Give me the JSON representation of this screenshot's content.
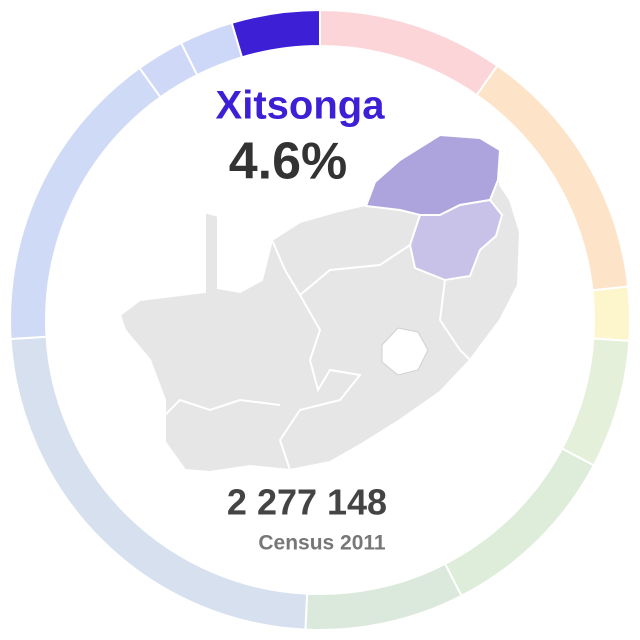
{
  "chart_data": {
    "type": "donut",
    "categories": [
      null,
      null,
      null,
      null,
      null,
      null,
      null,
      null,
      null,
      null,
      "Xitsonga"
    ],
    "values": [
      9.7,
      13.6,
      2.8,
      6.7,
      9.7,
      8.3,
      23.3,
      16.1,
      2.5,
      2.8,
      4.6
    ],
    "value_labels": [
      null,
      null,
      null,
      null,
      null,
      null,
      null,
      null,
      null,
      null,
      "4.6%"
    ],
    "colors": [
      "#fcd5d9",
      "#fde3c8",
      "#fdf5cc",
      "#e4f0d9",
      "#deedda",
      "#dbe9dc",
      "#d6e0ef",
      "#cfdbf6",
      "#cfd9f7",
      "#cdd7f8",
      "#3d1fd6"
    ],
    "highlight": 10,
    "speakers": "2 277 148",
    "source": "Census 2011"
  }
}
